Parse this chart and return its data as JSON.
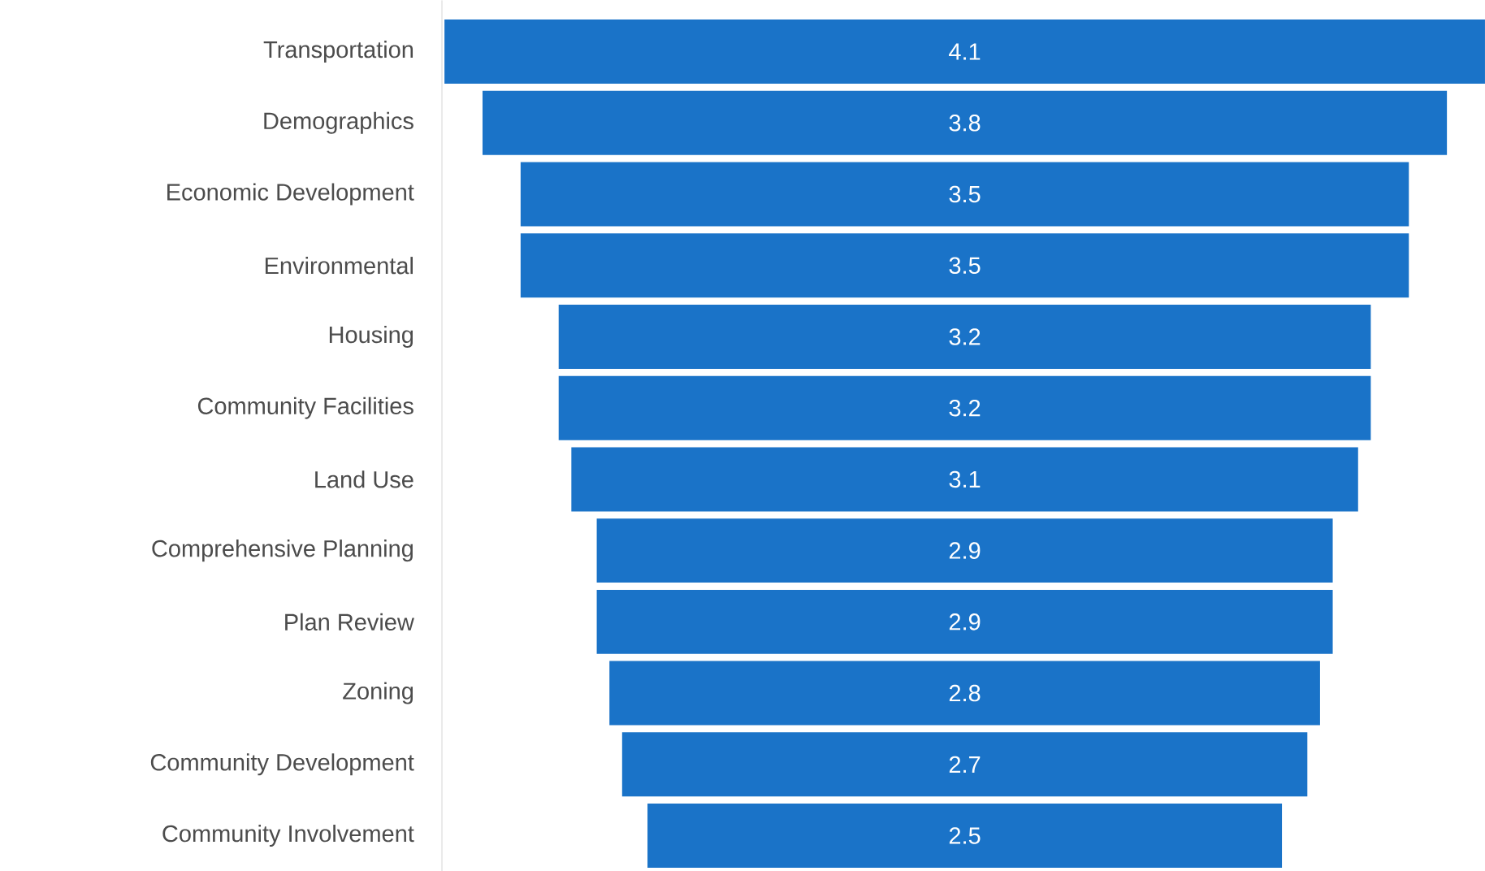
{
  "chart_data": {
    "type": "other",
    "categories": [
      "Transportation",
      "Demographics",
      "Economic Development",
      "Environmental",
      "Housing",
      "Community Facilities",
      "Land Use",
      "Comprehensive Planning",
      "Plan Review",
      "Zoning",
      "Community Development",
      "Community Involvement"
    ],
    "values": [
      4.1,
      3.8,
      3.5,
      3.5,
      3.2,
      3.2,
      3.1,
      2.9,
      2.9,
      2.8,
      2.7,
      2.5
    ],
    "color": "#1a73c8",
    "data_labels": true
  }
}
